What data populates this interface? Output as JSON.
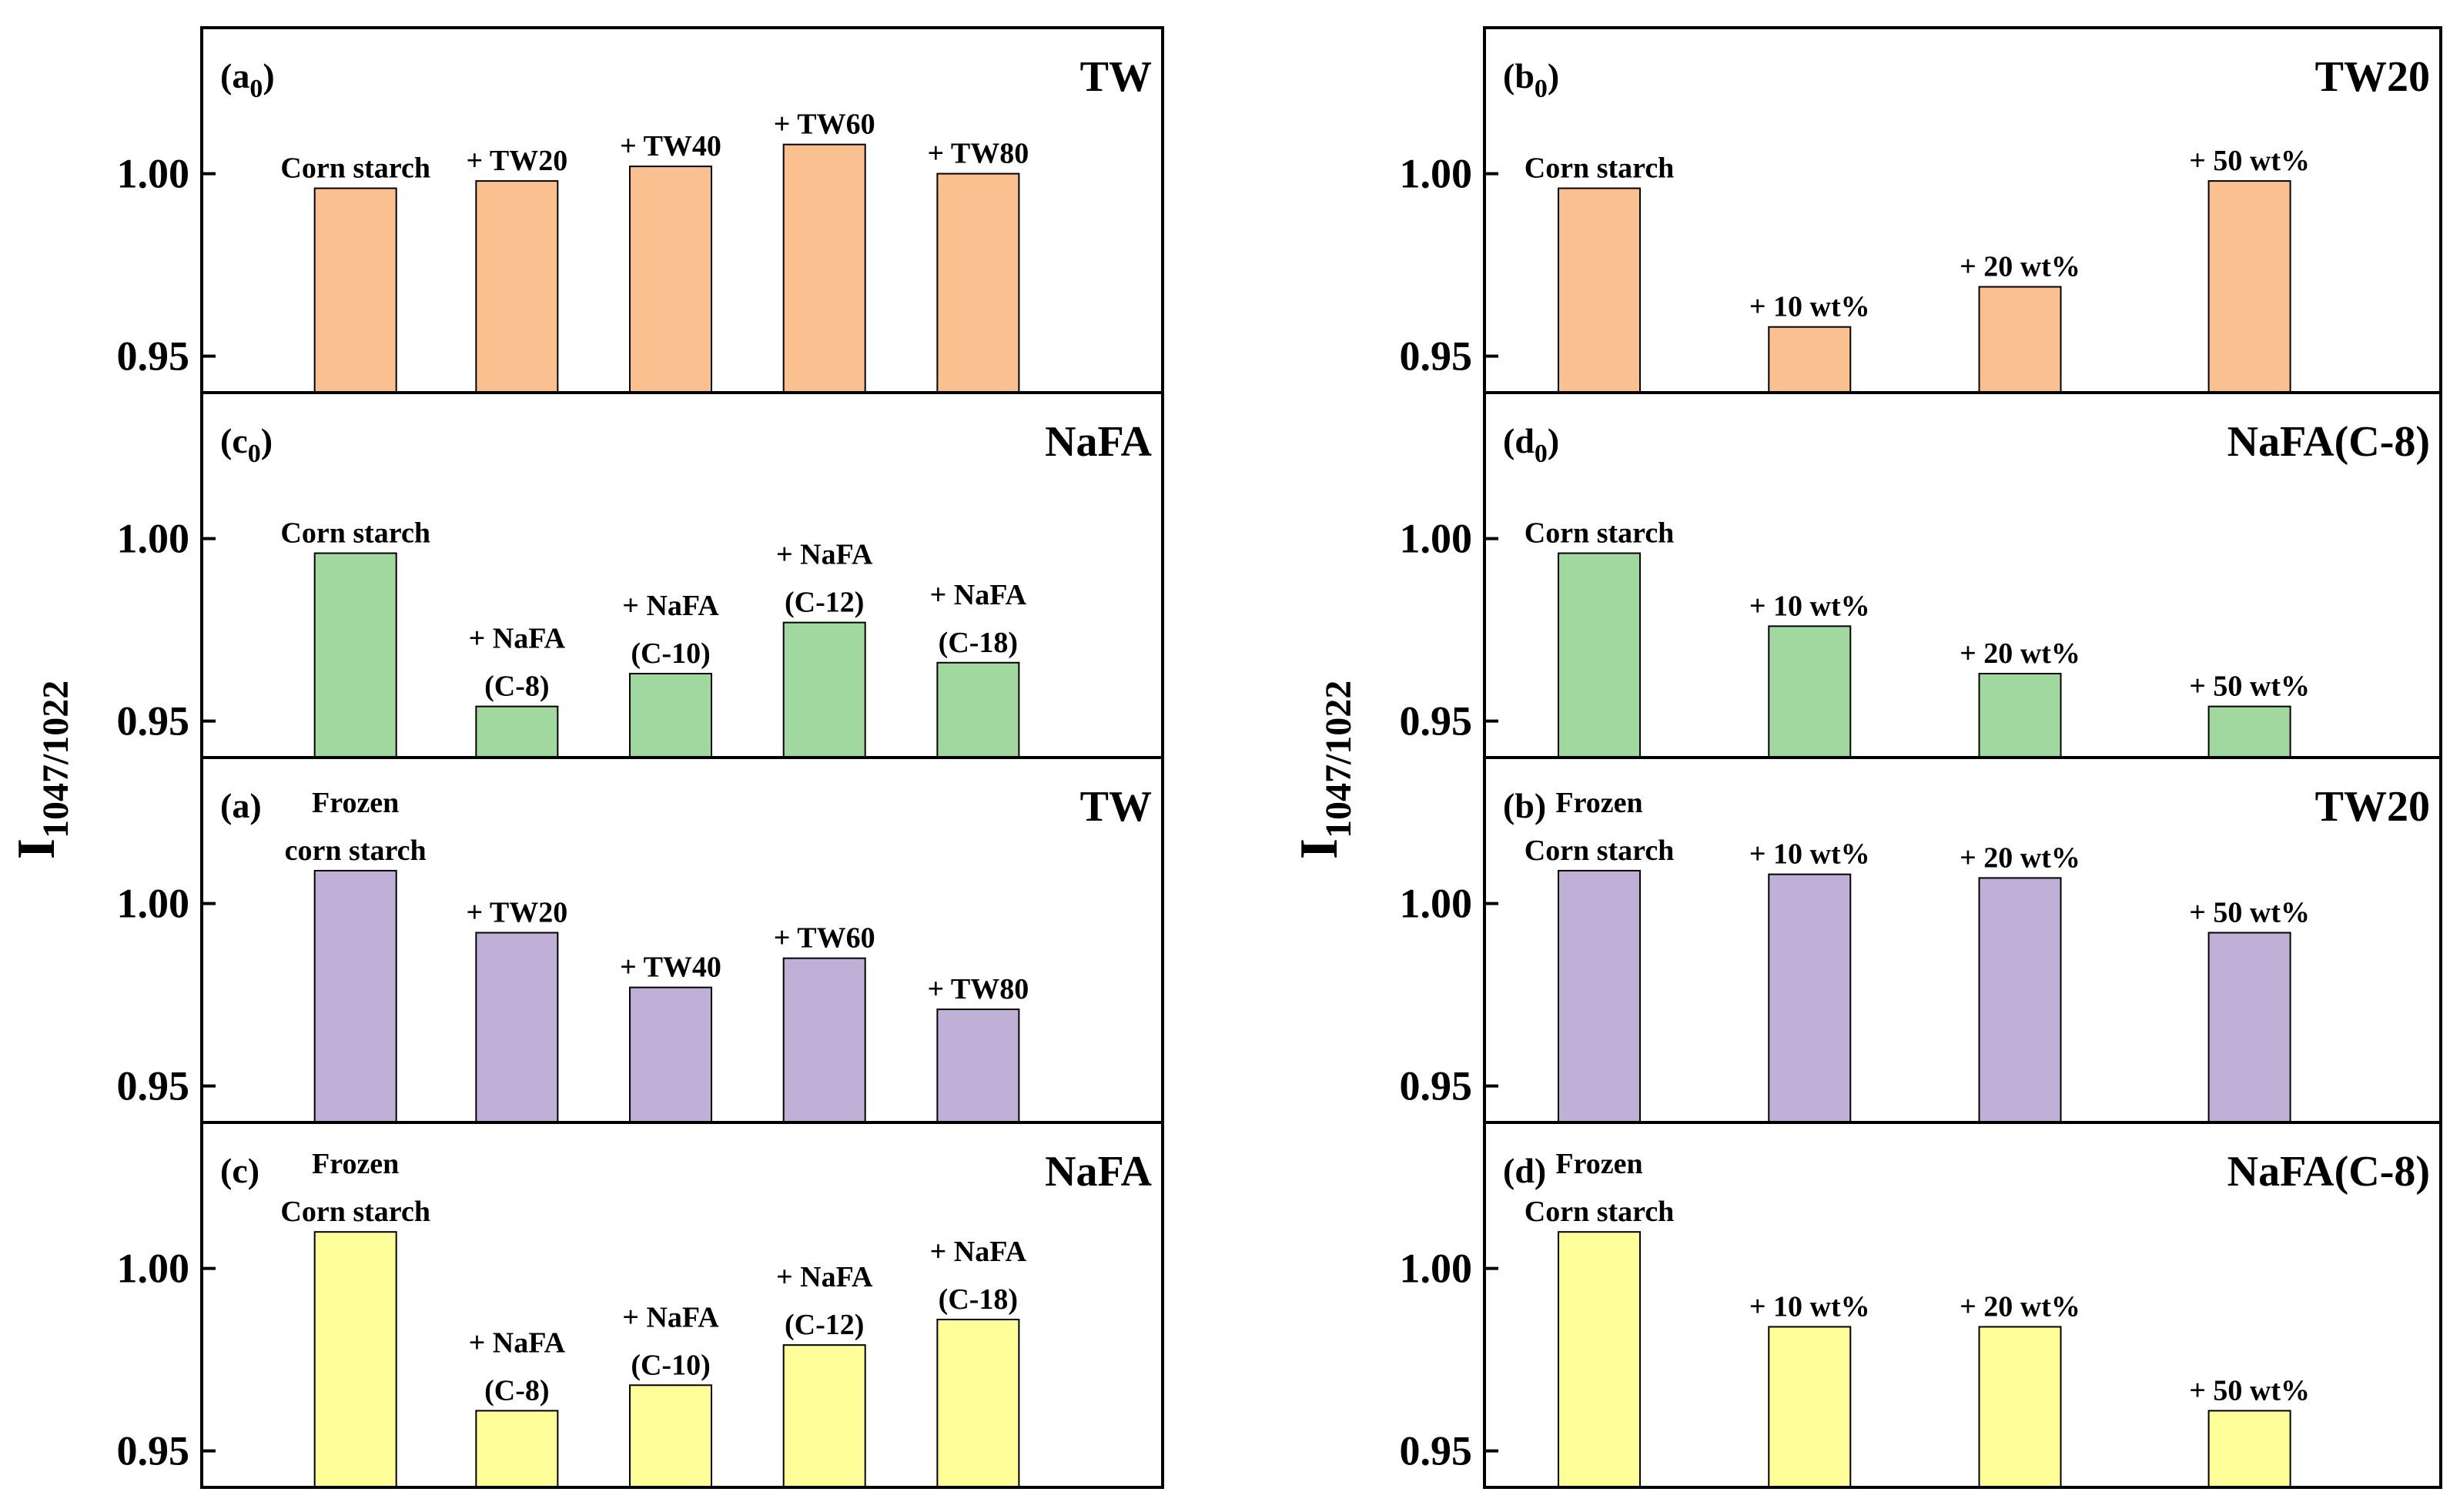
{
  "chart_data": {
    "type": "bar",
    "ylabel": "I",
    "ylabel_sub": "1047/1022",
    "ylim": [
      0.94,
      1.04
    ],
    "yticks": [
      0.95,
      1.0
    ],
    "ytick_labels": [
      "0.95",
      "1.00"
    ],
    "colors": {
      "orange": "#FAC090",
      "green": "#A0D8A0",
      "purple": "#C0B0D8",
      "yellow": "#FFFF99"
    },
    "panels": [
      {
        "id": "a0",
        "label": "(a",
        "label_sub": "0",
        "label_tail": ")",
        "title": "TW",
        "color": "orange",
        "categories": [
          [
            "Corn starch"
          ],
          [
            "+ TW20"
          ],
          [
            "+ TW40"
          ],
          [
            "+ TW60"
          ],
          [
            "+ TW80"
          ]
        ],
        "values": [
          0.996,
          0.998,
          1.002,
          1.008,
          1.0
        ]
      },
      {
        "id": "b0",
        "label": "(b",
        "label_sub": "0",
        "label_tail": ")",
        "title": "TW20",
        "color": "orange",
        "categories": [
          [
            "Corn starch"
          ],
          [
            "+ 10 wt%"
          ],
          [
            "+ 20 wt%"
          ],
          [
            "+ 50 wt%"
          ]
        ],
        "values": [
          0.996,
          0.958,
          0.969,
          0.998
        ]
      },
      {
        "id": "c0",
        "label": "(c",
        "label_sub": "0",
        "label_tail": ")",
        "title": "NaFA",
        "color": "green",
        "categories": [
          [
            "Corn starch"
          ],
          [
            "+ NaFA",
            "(C-8)"
          ],
          [
            "+ NaFA",
            "(C-10)"
          ],
          [
            "+ NaFA",
            "(C-12)"
          ],
          [
            "+ NaFA",
            "(C-18)"
          ]
        ],
        "values": [
          0.996,
          0.954,
          0.963,
          0.977,
          0.966
        ]
      },
      {
        "id": "d0",
        "label": "(d",
        "label_sub": "0",
        "label_tail": ")",
        "title": "NaFA(C-8)",
        "color": "green",
        "categories": [
          [
            "Corn starch"
          ],
          [
            "+ 10 wt%"
          ],
          [
            "+ 20 wt%"
          ],
          [
            "+ 50 wt%"
          ]
        ],
        "values": [
          0.996,
          0.976,
          0.963,
          0.954
        ]
      },
      {
        "id": "a",
        "label": "(a)",
        "label_sub": "",
        "label_tail": "",
        "title": "TW",
        "color": "purple",
        "categories": [
          [
            "Frozen",
            "corn starch"
          ],
          [
            "+ TW20"
          ],
          [
            "+ TW40"
          ],
          [
            "+ TW60"
          ],
          [
            "+ TW80"
          ]
        ],
        "values": [
          1.009,
          0.992,
          0.977,
          0.985,
          0.971
        ]
      },
      {
        "id": "b",
        "label": "(b)",
        "label_sub": "",
        "label_tail": "",
        "title": "TW20",
        "color": "purple",
        "categories": [
          [
            "Frozen",
            "Corn starch"
          ],
          [
            "+ 10 wt%"
          ],
          [
            "+ 20 wt%"
          ],
          [
            "+ 50 wt%"
          ]
        ],
        "values": [
          1.009,
          1.008,
          1.007,
          0.992
        ]
      },
      {
        "id": "c",
        "label": "(c)",
        "label_sub": "",
        "label_tail": "",
        "title": "NaFA",
        "color": "yellow",
        "categories": [
          [
            "Frozen",
            "Corn starch"
          ],
          [
            "+ NaFA",
            "(C-8)"
          ],
          [
            "+ NaFA",
            "(C-10)"
          ],
          [
            "+ NaFA",
            "(C-12)"
          ],
          [
            "+ NaFA",
            "(C-18)"
          ]
        ],
        "values": [
          1.01,
          0.961,
          0.968,
          0.979,
          0.986
        ]
      },
      {
        "id": "d",
        "label": "(d)",
        "label_sub": "",
        "label_tail": "",
        "title": "NaFA(C-8)",
        "color": "yellow",
        "categories": [
          [
            "Frozen",
            "Corn starch"
          ],
          [
            "+ 10 wt%"
          ],
          [
            "+ 20 wt%"
          ],
          [
            "+ 50 wt%"
          ]
        ],
        "values": [
          1.01,
          0.984,
          0.984,
          0.961
        ]
      }
    ]
  }
}
